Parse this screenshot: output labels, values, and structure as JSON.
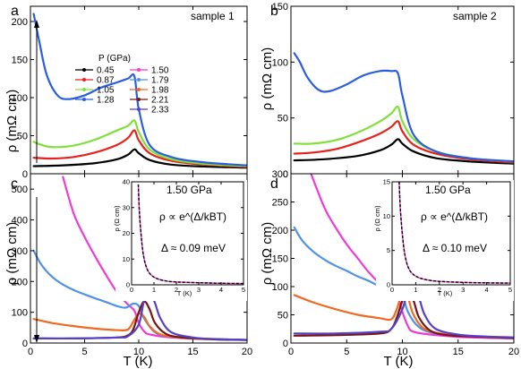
{
  "panel_labels": [
    "a",
    "b",
    "c",
    "d"
  ],
  "sample_labels": {
    "a": "sample 1",
    "b": "sample 2"
  },
  "legend": {
    "title": "P (GPa)",
    "entries": [
      {
        "label": "0.45",
        "color": "#000000"
      },
      {
        "label": "0.87",
        "color": "#e8201c"
      },
      {
        "label": "1.05",
        "color": "#7fe03a"
      },
      {
        "label": "1.28",
        "color": "#2b5de0"
      },
      {
        "label": "1.50",
        "color": "#f03ad8"
      },
      {
        "label": "1.79",
        "color": "#4f92e6"
      },
      {
        "label": "1.98",
        "color": "#ef6a1f"
      },
      {
        "label": "2.21",
        "color": "#7a1414"
      },
      {
        "label": "2.33",
        "color": "#5540c8"
      }
    ]
  },
  "axis_labels": {
    "y_top": "ρ (mΩ cm)",
    "y_bottom": "ρ (mΩ cm)",
    "x": "T (K)",
    "inset_y": "ρ (Ω cm)",
    "inset_x": "T (K)"
  },
  "insets": {
    "c": {
      "pressure": "1.50 GPa",
      "formula": "ρ ∝ e^(Δ/kBT)",
      "gap": "Δ ≈ 0.09 meV"
    },
    "d": {
      "pressure": "1.50 GPa",
      "formula": "ρ ∝ e^(Δ/kBT)",
      "gap": "Δ ≈ 0.10 meV"
    }
  },
  "chart_data": [
    {
      "panel": "a",
      "type": "line",
      "xlabel": "",
      "ylabel": "ρ (mΩ cm)",
      "xlim": [
        0,
        20
      ],
      "ylim": [
        0,
        220
      ],
      "xticks": [
        0,
        5,
        10,
        15,
        20
      ],
      "yticks": [
        0,
        50,
        100,
        150,
        200
      ],
      "series": [
        {
          "name": "0.45",
          "color": "#000000",
          "x": [
            0.3,
            3,
            6,
            8,
            9,
            9.6,
            10,
            11,
            13,
            16,
            20
          ],
          "y": [
            10,
            11,
            14,
            19,
            25,
            32,
            27,
            18,
            12,
            9.5,
            8
          ]
        },
        {
          "name": "0.87",
          "color": "#e8201c",
          "x": [
            0.3,
            2,
            4,
            6,
            8,
            9,
            9.6,
            10,
            11,
            13,
            16,
            20
          ],
          "y": [
            21,
            20,
            22,
            28,
            38,
            47,
            57,
            44,
            27,
            17,
            12,
            9
          ]
        },
        {
          "name": "1.05",
          "color": "#7fe03a",
          "x": [
            0.3,
            1,
            2,
            4,
            6,
            8,
            9,
            9.6,
            10,
            11,
            13,
            16,
            20
          ],
          "y": [
            42,
            38,
            35,
            37,
            45,
            57,
            63,
            70,
            55,
            32,
            19,
            13,
            10
          ]
        },
        {
          "name": "1.28",
          "color": "#2b5de0",
          "x": [
            0.3,
            0.8,
            1.5,
            2.5,
            3.5,
            5,
            6.5,
            8,
            9,
            9.6,
            10,
            11,
            13,
            16,
            20
          ],
          "y": [
            210,
            175,
            130,
            103,
            98,
            103,
            113,
            120,
            125,
            128,
            85,
            38,
            22,
            15,
            11
          ]
        }
      ]
    },
    {
      "panel": "b",
      "type": "line",
      "xlabel": "",
      "ylabel": "",
      "xlim": [
        0,
        20
      ],
      "ylim": [
        0,
        150
      ],
      "xticks": [
        0,
        5,
        10,
        15,
        20
      ],
      "yticks": [
        0,
        50,
        100,
        150
      ],
      "series": [
        {
          "name": "0.45",
          "color": "#000000",
          "x": [
            0.3,
            3,
            6,
            8,
            9,
            9.6,
            10,
            11,
            13,
            16,
            20
          ],
          "y": [
            12,
            13,
            16,
            21,
            26,
            31,
            27,
            20,
            14,
            11,
            9
          ]
        },
        {
          "name": "0.87",
          "color": "#e8201c",
          "x": [
            0.3,
            2,
            4,
            6,
            8,
            9,
            9.6,
            10,
            11,
            13,
            16,
            20
          ],
          "y": [
            18,
            19,
            22,
            28,
            36,
            42,
            47,
            38,
            26,
            18,
            13,
            10
          ]
        },
        {
          "name": "1.05",
          "color": "#7fe03a",
          "x": [
            0.3,
            2,
            4,
            6,
            8,
            9,
            9.6,
            10,
            11,
            13,
            16,
            20
          ],
          "y": [
            27,
            27,
            30,
            37,
            47,
            54,
            60,
            47,
            31,
            20,
            14,
            11
          ]
        },
        {
          "name": "1.28",
          "color": "#2b5de0",
          "x": [
            0.3,
            0.8,
            1.5,
            2.5,
            3.5,
            5,
            6.5,
            8,
            9,
            9.6,
            10,
            11,
            13,
            16,
            20
          ],
          "y": [
            108,
            100,
            86,
            75,
            74,
            80,
            88,
            92,
            92,
            90,
            70,
            35,
            20,
            14,
            11
          ]
        }
      ]
    },
    {
      "panel": "c",
      "type": "line",
      "xlabel": "T (K)",
      "ylabel": "ρ (mΩ cm)",
      "xlim": [
        0,
        20
      ],
      "ylim": [
        0,
        550
      ],
      "xticks": [
        0,
        5,
        10,
        15,
        20
      ],
      "yticks": [
        0,
        100,
        200,
        300,
        400,
        500
      ],
      "series": [
        {
          "name": "1.50",
          "color": "#f03ad8",
          "x": [
            3,
            4,
            5,
            6,
            7,
            8,
            9,
            9.6,
            10,
            10.5,
            11,
            13,
            16,
            20
          ],
          "y": [
            540,
            420,
            345,
            280,
            220,
            165,
            125,
            105,
            65,
            38,
            28,
            18,
            13,
            10
          ]
        },
        {
          "name": "1.79",
          "color": "#4f92e6",
          "x": [
            0.3,
            1,
            2,
            3,
            4,
            5,
            6,
            7,
            8,
            8.8,
            9.5,
            10,
            10.5,
            11.5,
            13,
            16,
            20
          ],
          "y": [
            300,
            255,
            215,
            190,
            172,
            158,
            145,
            133,
            120,
            115,
            128,
            120,
            80,
            35,
            20,
            14,
            10
          ]
        },
        {
          "name": "1.98",
          "color": "#ef6a1f",
          "x": [
            0.3,
            2,
            4,
            6,
            8,
            9,
            9.5,
            10,
            10.5,
            11,
            12,
            14,
            17,
            20
          ],
          "y": [
            78,
            65,
            55,
            47,
            42,
            44,
            70,
            95,
            85,
            55,
            28,
            17,
            12,
            10
          ]
        },
        {
          "name": "2.21",
          "color": "#7a1414",
          "x": [
            0.3,
            4,
            8,
            9,
            9.5,
            10,
            10.5,
            11,
            11.5,
            12.5,
            14,
            17,
            20
          ],
          "y": [
            15,
            15,
            18,
            25,
            45,
            100,
            135,
            110,
            65,
            30,
            18,
            12,
            10
          ]
        },
        {
          "name": "2.33",
          "color": "#5540c8",
          "x": [
            0.3,
            4,
            8,
            9,
            10,
            10.5,
            11,
            11.5,
            12,
            13,
            15,
            17,
            20
          ],
          "y": [
            15,
            15,
            18,
            22,
            60,
            140,
            165,
            130,
            80,
            35,
            18,
            13,
            10
          ]
        }
      ]
    },
    {
      "panel": "d",
      "type": "line",
      "xlabel": "T (K)",
      "ylabel": "",
      "xlim": [
        0,
        20
      ],
      "ylim": [
        0,
        300
      ],
      "xticks": [
        0,
        5,
        10,
        15,
        20
      ],
      "yticks": [
        0,
        50,
        100,
        150,
        200,
        250,
        300
      ],
      "series": [
        {
          "name": "1.50",
          "color": "#f03ad8",
          "x": [
            1.8,
            3,
            4,
            5,
            6,
            7,
            8,
            9,
            9.6,
            10,
            10.5,
            11,
            13,
            16,
            20
          ],
          "y": [
            300,
            240,
            205,
            175,
            150,
            125,
            105,
            90,
            80,
            55,
            30,
            20,
            14,
            10,
            8
          ]
        },
        {
          "name": "1.79",
          "color": "#4f92e6",
          "x": [
            0.3,
            1,
            2,
            3,
            4,
            5,
            6,
            7,
            8,
            8.8,
            9.5,
            10,
            10.5,
            11.5,
            13,
            16,
            20
          ],
          "y": [
            205,
            182,
            162,
            148,
            137,
            128,
            118,
            110,
            100,
            95,
            100,
            88,
            55,
            28,
            17,
            12,
            9
          ]
        },
        {
          "name": "1.98",
          "color": "#ef6a1f",
          "x": [
            0.3,
            2,
            4,
            6,
            8,
            9,
            9.5,
            10,
            10.5,
            11,
            12,
            14,
            17,
            20
          ],
          "y": [
            85,
            72,
            60,
            50,
            44,
            42,
            60,
            88,
            80,
            50,
            25,
            15,
            11,
            9
          ]
        },
        {
          "name": "2.21",
          "color": "#7a1414",
          "x": [
            0.3,
            4,
            8,
            9,
            9.5,
            10,
            10.5,
            11,
            11.5,
            12.5,
            14,
            17,
            20
          ],
          "y": [
            13,
            14,
            17,
            25,
            45,
            75,
            90,
            75,
            45,
            22,
            14,
            11,
            9
          ]
        },
        {
          "name": "2.33",
          "color": "#5540c8",
          "x": [
            0.3,
            4,
            8,
            9,
            10,
            10.5,
            11,
            11.5,
            12,
            13,
            15,
            17,
            20
          ],
          "y": [
            17,
            17,
            20,
            25,
            60,
            95,
            100,
            80,
            50,
            25,
            15,
            12,
            10
          ]
        }
      ]
    },
    {
      "panel": "c-inset",
      "type": "line",
      "xlabel": "T (K)",
      "ylabel": "ρ (Ω cm)",
      "xlim": [
        0,
        5
      ],
      "ylim": [
        0,
        40
      ],
      "xticks": [
        0,
        1,
        2,
        3,
        4,
        5
      ],
      "yticks": [
        0,
        10,
        20,
        30,
        40
      ],
      "series": [
        {
          "name": "1.50",
          "color": "#f03ad8",
          "x": [
            0.3,
            0.35,
            0.45,
            0.55,
            0.7,
            0.9,
            1.2,
            1.6,
            2,
            3,
            4,
            5
          ],
          "y": [
            39,
            28,
            17,
            10.5,
            6,
            3.6,
            2.2,
            1.4,
            1.1,
            0.8,
            0.6,
            0.5
          ]
        },
        {
          "name": "",
          "color": "#000000",
          "dashed": true,
          "x": [
            0.3,
            0.35,
            0.45,
            0.55,
            0.7,
            0.9,
            1.2,
            1.6,
            2,
            3,
            4,
            5
          ],
          "y": [
            39,
            28,
            17,
            10.5,
            6,
            3.6,
            2.2,
            1.4,
            1.1,
            0.8,
            0.6,
            0.5
          ]
        }
      ]
    },
    {
      "panel": "d-inset",
      "type": "line",
      "xlabel": "T (K)",
      "ylabel": "ρ (Ω cm)",
      "xlim": [
        0,
        5
      ],
      "ylim": [
        0,
        15
      ],
      "xticks": [
        0,
        1,
        2,
        3,
        4,
        5
      ],
      "yticks": [
        0,
        5,
        10,
        15
      ],
      "series": [
        {
          "name": "1.50",
          "color": "#f03ad8",
          "x": [
            0.3,
            0.35,
            0.45,
            0.55,
            0.7,
            0.9,
            1.2,
            1.6,
            2,
            3,
            4,
            5
          ],
          "y": [
            15,
            11,
            6.8,
            4.2,
            2.4,
            1.5,
            0.95,
            0.65,
            0.5,
            0.35,
            0.28,
            0.25
          ]
        },
        {
          "name": "",
          "color": "#000000",
          "dashed": true,
          "x": [
            0.3,
            0.35,
            0.45,
            0.55,
            0.7,
            0.9,
            1.2,
            1.6,
            2,
            3,
            4,
            5
          ],
          "y": [
            15,
            11,
            6.8,
            4.2,
            2.4,
            1.5,
            0.95,
            0.65,
            0.5,
            0.35,
            0.28,
            0.25
          ]
        }
      ]
    }
  ]
}
